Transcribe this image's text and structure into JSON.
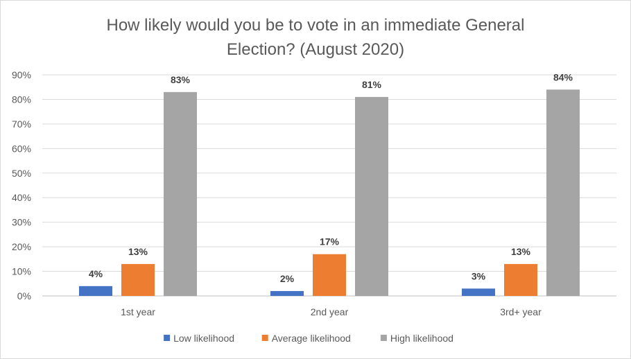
{
  "chart_data": {
    "type": "bar",
    "title_lines": [
      "How likely would you be to vote in an immediate General",
      "Election? (August 2020)"
    ],
    "categories": [
      "1st year",
      "2nd year",
      "3rd+ year"
    ],
    "series": [
      {
        "name": "Low likelihood",
        "color": "#4472c4",
        "values": [
          4,
          2,
          3
        ],
        "labels": [
          "4%",
          "2%",
          "3%"
        ]
      },
      {
        "name": "Average likelihood",
        "color": "#ed7d31",
        "values": [
          13,
          17,
          13
        ],
        "labels": [
          "13%",
          "17%",
          "13%"
        ]
      },
      {
        "name": "High likelihood",
        "color": "#a5a5a5",
        "values": [
          83,
          81,
          84
        ],
        "labels": [
          "83%",
          "81%",
          "84%"
        ]
      }
    ],
    "ylim": [
      0,
      90
    ],
    "yticks": [
      0,
      10,
      20,
      30,
      40,
      50,
      60,
      70,
      80,
      90
    ],
    "ytick_labels": [
      "0%",
      "10%",
      "20%",
      "30%",
      "40%",
      "50%",
      "60%",
      "70%",
      "80%",
      "90%"
    ],
    "grid": true,
    "legend": "bottom"
  }
}
